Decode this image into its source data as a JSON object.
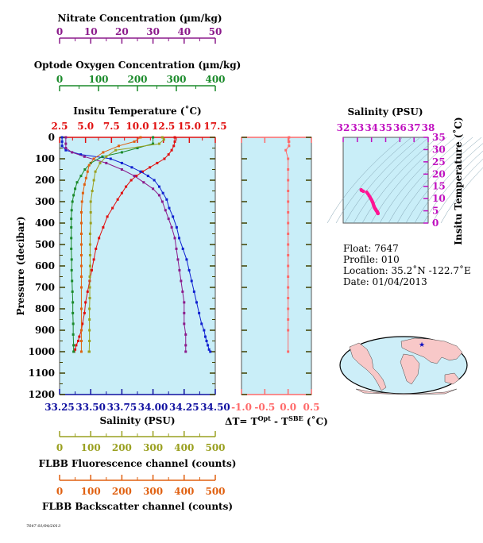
{
  "colors": {
    "nitrate": "#8b1a8b",
    "oxygen": "#1a8a2a",
    "temperature": "#e01010",
    "salinity_axis": "#1010a0",
    "salinity_profile": "#1020d0",
    "fluorescence": "#9aa020",
    "backscatter": "#e06010",
    "deltaT": "#ff6a6a",
    "ts_salinity": "#c010c0",
    "ts_points": "#ff1493",
    "panel_bg": "#c9eef8",
    "map_ocean": "#cdeef8",
    "map_land": "#f8c8c8"
  },
  "axes": {
    "nitrate": {
      "label": "Nitrate Concentration (µm/kg)",
      "ticks": [
        "0",
        "10",
        "20",
        "30",
        "40",
        "50"
      ],
      "range": [
        0,
        50
      ]
    },
    "oxygen": {
      "label": "Optode Oxygen Concentration (µm/kg)",
      "ticks": [
        "0",
        "100",
        "200",
        "300",
        "400"
      ],
      "range": [
        0,
        400
      ]
    },
    "temperature": {
      "label": "Insitu Temperature (˚C)",
      "ticks": [
        "2.5",
        "5.0",
        "7.5",
        "10.0",
        "12.5",
        "15.0",
        "17.5"
      ],
      "range": [
        2.5,
        17.5
      ]
    },
    "pressure": {
      "label": "Pressure (decibar)",
      "ticks": [
        "0",
        "100",
        "200",
        "300",
        "400",
        "500",
        "600",
        "700",
        "800",
        "900",
        "1000",
        "1100",
        "1200"
      ],
      "range": [
        0,
        1200
      ]
    },
    "salinity": {
      "label": "Salinity (PSU)",
      "ticks": [
        "33.25",
        "33.50",
        "33.75",
        "34.00",
        "34.25",
        "34.50"
      ],
      "range": [
        33.25,
        34.5
      ]
    },
    "deltaT": {
      "label": "ΔT= T",
      "sup1": "Opt",
      "mid": " - T",
      "sup2": "SBE",
      "end": " (˚C)",
      "ticks": [
        "-1.0",
        "-0.5",
        "0.0",
        "0.5"
      ],
      "range": [
        -1.0,
        0.5
      ]
    },
    "fluorescence": {
      "label": "FLBB Fluorescence channel (counts)",
      "ticks": [
        "0",
        "100",
        "200",
        "300",
        "400",
        "500"
      ],
      "range": [
        0,
        500
      ]
    },
    "backscatter": {
      "label": "FLBB Backscatter channel (counts)",
      "ticks": [
        "0",
        "100",
        "200",
        "300",
        "400",
        "500"
      ],
      "range": [
        0,
        500
      ]
    },
    "ts_salinity": {
      "label": "Salinity (PSU)",
      "ticks": [
        "32",
        "33",
        "34",
        "35",
        "36",
        "37",
        "38"
      ],
      "range": [
        32,
        38
      ]
    },
    "ts_temperature": {
      "label": "Insitu Temperature (˚C)",
      "ticks": [
        "0",
        "5",
        "10",
        "15",
        "20",
        "25",
        "30",
        "35"
      ],
      "range": [
        0,
        35
      ]
    }
  },
  "info": {
    "float": "Float:  7647",
    "profile": "Profile:  010",
    "location": "Location:  35.2˚N  -122.7˚E",
    "date": "Date:  01/04/2013"
  },
  "footer_text": "7647 01/04/2013",
  "chart_data": [
    {
      "type": "line",
      "title": "",
      "ylabel": "Pressure (decibar)",
      "ylim": [
        1200,
        0
      ],
      "series": [
        {
          "name": "Insitu Temperature",
          "axis": "temperature",
          "x": [
            13.6,
            13.6,
            13.5,
            13.3,
            13.0,
            12.6,
            11.9,
            11.2,
            10.5,
            9.9,
            9.4,
            8.9,
            8.5,
            8.1,
            7.6,
            7.1,
            6.7,
            6.3,
            6.0,
            5.8,
            5.6,
            5.4,
            5.2,
            5.0,
            4.9,
            4.7,
            4.6,
            4.4,
            4.3,
            4.1,
            4.0,
            3.9
          ],
          "y": [
            0,
            20,
            40,
            60,
            80,
            100,
            120,
            140,
            160,
            180,
            200,
            230,
            260,
            290,
            330,
            370,
            420,
            470,
            520,
            570,
            620,
            670,
            720,
            770,
            820,
            870,
            900,
            930,
            950,
            970,
            990,
            1000
          ]
        },
        {
          "name": "Salinity",
          "axis": "salinity",
          "x": [
            33.27,
            33.27,
            33.27,
            33.3,
            33.42,
            33.66,
            33.75,
            33.83,
            33.9,
            33.96,
            34.01,
            34.05,
            34.08,
            34.11,
            34.13,
            34.16,
            34.19,
            34.21,
            34.24,
            34.27,
            34.29,
            34.31,
            34.33,
            34.35,
            34.37,
            34.39,
            34.41,
            34.42,
            34.43,
            34.44,
            34.45,
            34.46
          ],
          "y": [
            0,
            20,
            40,
            60,
            80,
            100,
            120,
            140,
            160,
            180,
            200,
            230,
            260,
            290,
            330,
            370,
            420,
            470,
            520,
            570,
            620,
            670,
            720,
            770,
            820,
            870,
            900,
            930,
            950,
            970,
            990,
            1000
          ]
        },
        {
          "name": "Nitrate",
          "axis": "nitrate",
          "x": [
            2,
            2,
            2,
            4,
            8,
            15,
            20,
            24,
            27,
            30,
            32,
            33,
            34,
            35,
            36,
            37,
            37.5,
            38,
            38.5,
            39,
            39.5,
            40,
            40,
            40,
            40.5,
            40.5,
            40.5
          ],
          "y": [
            0,
            30,
            50,
            70,
            90,
            120,
            150,
            180,
            210,
            240,
            270,
            300,
            340,
            380,
            420,
            470,
            520,
            570,
            620,
            670,
            720,
            770,
            820,
            870,
            920,
            970,
            1000
          ]
        },
        {
          "name": "Optode Oxygen",
          "axis": "oxygen",
          "x": [
            240,
            240,
            200,
            160,
            110,
            80,
            65,
            55,
            45,
            40,
            36,
            33,
            31,
            30,
            30,
            30,
            30,
            31,
            31,
            32,
            33,
            34,
            34,
            35,
            35,
            36,
            36
          ],
          "y": [
            0,
            30,
            50,
            70,
            90,
            120,
            150,
            180,
            210,
            240,
            270,
            300,
            340,
            380,
            420,
            470,
            520,
            570,
            620,
            670,
            720,
            770,
            820,
            870,
            920,
            970,
            1000
          ]
        },
        {
          "name": "FLBB Fluorescence",
          "axis": "fluorescence",
          "x": [
            330,
            335,
            320,
            180,
            150,
            130,
            115,
            110,
            105,
            100,
            100,
            100,
            98,
            98,
            98,
            98,
            97,
            97,
            97,
            96,
            96,
            96,
            96,
            95,
            95,
            95,
            95,
            95
          ],
          "y": [
            0,
            10,
            30,
            60,
            90,
            120,
            160,
            200,
            250,
            300,
            350,
            400,
            450,
            500,
            550,
            600,
            650,
            700,
            750,
            800,
            850,
            900,
            950,
            1000,
            1000,
            1000,
            1000,
            1000
          ]
        },
        {
          "name": "FLBB Backscatter",
          "axis": "backscatter",
          "x": [
            260,
            240,
            190,
            140,
            110,
            95,
            90,
            85,
            80,
            75,
            72,
            70,
            70,
            70,
            70,
            70,
            70,
            70,
            70,
            70,
            70,
            70,
            70
          ],
          "y": [
            0,
            20,
            40,
            70,
            100,
            130,
            160,
            190,
            220,
            260,
            300,
            350,
            400,
            450,
            500,
            550,
            600,
            650,
            700,
            800,
            900,
            950,
            1000
          ]
        }
      ]
    },
    {
      "type": "line",
      "title": "",
      "xlabel": "ΔT= T(Opt) - T(SBE) (˚C)",
      "xlim": [
        -1.0,
        0.5
      ],
      "ylim": [
        1200,
        0
      ],
      "series": [
        {
          "name": "ΔT",
          "x": [
            0.02,
            0.02,
            0.02,
            -0.05,
            0.0,
            0.0,
            0.0,
            0.0,
            0.0,
            0.0,
            0.0,
            0.0,
            0.0,
            0.0,
            0.0,
            0.0,
            0.0,
            0.0,
            0.0,
            0.0,
            0.0,
            0.0
          ],
          "y": [
            0,
            20,
            40,
            60,
            100,
            150,
            200,
            250,
            300,
            350,
            400,
            450,
            500,
            550,
            600,
            650,
            700,
            750,
            800,
            850,
            900,
            1000
          ]
        }
      ]
    },
    {
      "type": "scatter",
      "title": "",
      "xlabel": "Salinity (PSU)",
      "ylabel": "Insitu Temperature (˚C)",
      "xlim": [
        32,
        38
      ],
      "ylim": [
        0,
        35
      ],
      "series": [
        {
          "name": "T-S",
          "x": [
            33.27,
            33.3,
            33.42,
            33.66,
            33.75,
            33.83,
            33.9,
            33.96,
            34.01,
            34.05,
            34.08,
            34.11,
            34.13,
            34.16,
            34.19,
            34.21,
            34.24,
            34.27,
            34.29,
            34.31,
            34.33,
            34.35,
            34.37,
            34.39,
            34.41,
            34.42,
            34.43,
            34.44,
            34.45,
            34.46
          ],
          "y": [
            13.6,
            13.3,
            13.0,
            12.6,
            11.9,
            11.2,
            10.5,
            9.9,
            9.4,
            8.9,
            8.5,
            8.1,
            7.6,
            7.1,
            6.7,
            6.3,
            6.0,
            5.8,
            5.6,
            5.4,
            5.2,
            5.0,
            4.9,
            4.7,
            4.6,
            4.4,
            4.3,
            4.1,
            4.0,
            3.9
          ]
        }
      ]
    }
  ]
}
